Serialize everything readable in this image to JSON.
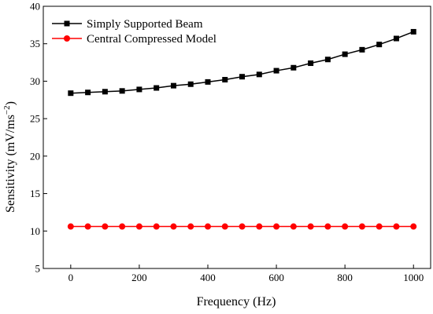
{
  "chart_data": {
    "type": "line",
    "xlabel": "Frequency (Hz)",
    "ylabel": {
      "prefix": "Sensitivity (mV/ms",
      "superscript": "−2",
      "suffix": ")"
    },
    "xlim": [
      -80,
      1050
    ],
    "ylim": [
      5,
      40
    ],
    "x_ticks": [
      0,
      200,
      400,
      600,
      800,
      1000
    ],
    "y_ticks": [
      5,
      10,
      15,
      20,
      25,
      30,
      35,
      40
    ],
    "x": [
      0,
      50,
      100,
      150,
      200,
      250,
      300,
      350,
      400,
      450,
      500,
      550,
      600,
      650,
      700,
      750,
      800,
      850,
      900,
      950,
      1000
    ],
    "series": [
      {
        "name": "Simply Supported Beam",
        "color": "#000000",
        "marker": "square",
        "values": [
          28.4,
          28.5,
          28.6,
          28.7,
          28.9,
          29.1,
          29.4,
          29.6,
          29.9,
          30.2,
          30.6,
          30.9,
          31.4,
          31.8,
          32.4,
          32.9,
          33.6,
          34.2,
          34.9,
          35.7,
          36.6
        ]
      },
      {
        "name": "Central Compressed Model",
        "color": "#ff0000",
        "marker": "circle",
        "values": [
          10.6,
          10.6,
          10.6,
          10.6,
          10.6,
          10.6,
          10.6,
          10.6,
          10.6,
          10.6,
          10.6,
          10.6,
          10.6,
          10.6,
          10.6,
          10.6,
          10.6,
          10.6,
          10.6,
          10.6,
          10.6
        ]
      }
    ],
    "legend_position": "top-left",
    "grid": false
  }
}
